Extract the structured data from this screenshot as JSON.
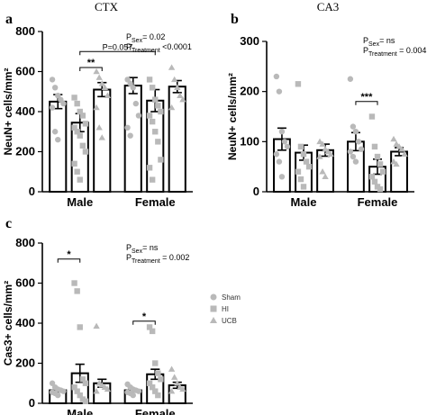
{
  "chart_data": [
    {
      "id": "a",
      "panel_label": "a",
      "title": "CTX",
      "type": "bar",
      "ylabel": "NeuN+ cells/mm²",
      "ylim": [
        0,
        800
      ],
      "yticks": [
        0,
        200,
        400,
        600,
        800
      ],
      "categories": [
        "Male",
        "Female"
      ],
      "series": [
        {
          "name": "Sham",
          "marker": "circle",
          "values": [
            450,
            530
          ],
          "sem": [
            35,
            40
          ],
          "points": [
            [
              560,
              520,
              480,
              460,
              440,
              420,
              300,
              260
            ],
            [
              560,
              540,
              520,
              440,
              380,
              320,
              280
            ]
          ]
        },
        {
          "name": "HI",
          "marker": "square",
          "values": [
            345,
            455
          ],
          "sem": [
            45,
            55
          ],
          "points": [
            [
              470,
              440,
              400,
              380,
              340,
              320,
              300,
              280,
              230,
              200,
              140,
              100,
              60
            ],
            [
              560,
              520,
              460,
              430,
              400,
              380,
              350,
              300,
              250,
              160,
              120,
              60
            ]
          ]
        },
        {
          "name": "UCB",
          "marker": "triangle",
          "values": [
            510,
            525
          ],
          "sem": [
            35,
            30
          ],
          "points": [
            [
              600,
              570,
              540,
              520,
              480,
              420,
              320,
              270
            ],
            [
              620,
              560,
              520,
              480,
              460,
              420
            ]
          ]
        }
      ],
      "stats": [
        "P",
        "Sex",
        "= 0.02",
        "P",
        "Treatment",
        " <0.0001"
      ],
      "brackets": [
        {
          "from_group": 0,
          "from_series": 1,
          "to_group": 0,
          "to_series": 2,
          "label": "**",
          "y": 620
        },
        {
          "from_group": 0,
          "from_series": 1,
          "to_group": 1,
          "to_series": 1,
          "label": "P=0.057",
          "y": 700
        }
      ]
    },
    {
      "id": "b",
      "panel_label": "b",
      "title": "CA3",
      "type": "bar",
      "ylabel": "NeuN+ cells/mm²",
      "ylim": [
        0,
        300
      ],
      "yticks": [
        0,
        100,
        200,
        300
      ],
      "categories": [
        "Male",
        "Female"
      ],
      "series": [
        {
          "name": "Sham",
          "marker": "circle",
          "values": [
            105,
            100
          ],
          "sem": [
            22,
            18
          ],
          "points": [
            [
              230,
              200,
              120,
              100,
              90,
              75,
              60,
              30
            ],
            [
              225,
              130,
              120,
              100,
              85,
              80,
              70,
              60
            ]
          ]
        },
        {
          "name": "HI",
          "marker": "square",
          "values": [
            78,
            50
          ],
          "sem": [
            15,
            15
          ],
          "points": [
            [
              215,
              90,
              75,
              60,
              50,
              40,
              25,
              10
            ],
            [
              150,
              90,
              70,
              55,
              40,
              30,
              20,
              10,
              5
            ]
          ]
        },
        {
          "name": "UCB",
          "marker": "triangle",
          "values": [
            83,
            80
          ],
          "sem": [
            12,
            8
          ],
          "points": [
            [
              100,
              95,
              85,
              80,
              75,
              70,
              40,
              30
            ],
            [
              105,
              95,
              90,
              85,
              75,
              60,
              55
            ]
          ]
        }
      ],
      "stats": [
        "P",
        "Sex",
        "= ns",
        "P",
        "Treatment",
        " = 0.004"
      ],
      "brackets": [
        {
          "from_group": 1,
          "from_series": 0,
          "to_group": 1,
          "to_series": 1,
          "label": "***",
          "y": 180
        }
      ]
    },
    {
      "id": "c",
      "panel_label": "c",
      "title": "",
      "type": "bar",
      "ylabel": "Cas3+ cells/mm²",
      "ylim": [
        0,
        800
      ],
      "yticks": [
        0,
        200,
        400,
        600,
        800
      ],
      "categories": [
        "Male",
        "Female"
      ],
      "series": [
        {
          "name": "Sham",
          "marker": "circle",
          "values": [
            65,
            65
          ],
          "sem": [
            8,
            6
          ],
          "points": [
            [
              100,
              80,
              70,
              65,
              60,
              55,
              50,
              40
            ],
            [
              95,
              80,
              70,
              65,
              60,
              55,
              50,
              40
            ]
          ]
        },
        {
          "name": "HI",
          "marker": "square",
          "values": [
            150,
            145
          ],
          "sem": [
            45,
            25
          ],
          "points": [
            [
              600,
              560,
              380,
              120,
              100,
              80,
              60,
              40,
              20,
              10
            ],
            [
              380,
              360,
              200,
              150,
              120,
              100,
              80,
              60,
              40
            ]
          ]
        },
        {
          "name": "UCB",
          "marker": "triangle",
          "values": [
            100,
            90
          ],
          "sem": [
            20,
            15
          ],
          "points": [
            [
              385,
              100,
              90,
              80,
              70,
              60
            ],
            [
              170,
              130,
              100,
              80,
              70,
              60
            ]
          ]
        }
      ],
      "stats": [
        "P",
        "Sex",
        "= ns",
        "P",
        "Treatment",
        " = 0.002"
      ],
      "brackets": [
        {
          "from_group": 0,
          "from_series": 0,
          "to_group": 0,
          "to_series": 1,
          "label": "*",
          "y": 720
        },
        {
          "from_group": 1,
          "from_series": 0,
          "to_group": 1,
          "to_series": 1,
          "label": "*",
          "y": 410
        }
      ]
    }
  ],
  "legend": {
    "position": "right",
    "entries": [
      "Sham",
      "HI",
      "UCB"
    ]
  },
  "colors": {
    "points": "#b9b9b9",
    "bar_fill": "#ffffff",
    "bar_stroke": "#000000"
  }
}
